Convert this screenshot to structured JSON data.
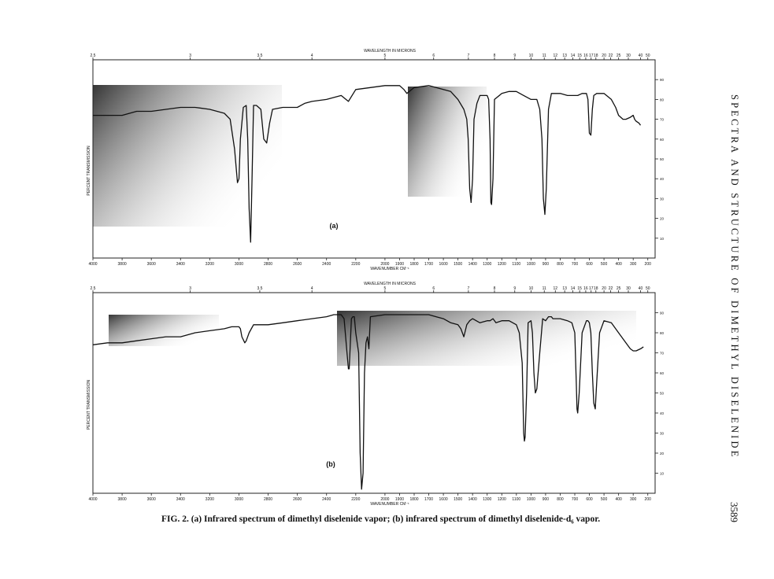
{
  "page": {
    "side_title": "SPECTRA AND STRUCTURE OF DIMETHYL DISELENIDE",
    "page_number": "3589",
    "caption": "FIG. 2. (a) Infrared spectrum of dimethyl diselenide vapor; (b) infrared spectrum of dimethyl diselenide-d₆ vapor."
  },
  "chart_data": [
    {
      "type": "line",
      "panel_label": "(a)",
      "xlabel": "WAVENUMBER CM⁻¹",
      "x2label": "WAVELENGTH IN MICRONS",
      "ylabel": "PERCENT TRANSMISSION",
      "xlim": [
        4000,
        150
      ],
      "ylim": [
        0,
        100
      ],
      "grid": false,
      "x_ticks": [
        "4000",
        "3800",
        "3600",
        "3400",
        "3200",
        "3000",
        "2800",
        "2600",
        "2400",
        "2200",
        "2000",
        "1900",
        "1800",
        "1700",
        "1600",
        "1500",
        "1400",
        "1300",
        "1200",
        "1100",
        "1000",
        "900",
        "800",
        "700",
        "600",
        "500",
        "400",
        "300",
        "200"
      ],
      "x2_ticks": [
        "2.5",
        "3",
        "3.5",
        "4",
        "5",
        "6",
        "7",
        "8",
        "9",
        "10",
        "11",
        "12",
        "13",
        "14",
        "15",
        "16",
        "17",
        "18",
        "20",
        "22",
        "25",
        "30",
        "40",
        "50"
      ],
      "y_ticks": [
        "10",
        "20",
        "30",
        "40",
        "50",
        "60",
        "70",
        "80",
        "90"
      ],
      "series": [
        {
          "x": [
            4000,
            3900,
            3800,
            3700,
            3600,
            3500,
            3400,
            3300,
            3200,
            3100,
            3060,
            3030,
            3010,
            3000,
            2990,
            2970,
            2950,
            2940,
            2930,
            2920,
            2910,
            2900,
            2880,
            2850,
            2830,
            2810,
            2790,
            2770,
            2700,
            2600,
            2550,
            2500,
            2400,
            2300,
            2250,
            2200,
            2100,
            2000,
            1900,
            1870,
            1850,
            1800,
            1700,
            1650,
            1600,
            1550,
            1500,
            1460,
            1440,
            1430,
            1420,
            1410,
            1400,
            1390,
            1370,
            1350,
            1300,
            1290,
            1280,
            1275,
            1270,
            1260,
            1250,
            1200,
            1150,
            1100,
            1050,
            1000,
            960,
            940,
            925,
            915,
            905,
            895,
            880,
            860,
            800,
            750,
            700,
            680,
            650,
            620,
            610,
            600,
            590,
            580,
            570,
            550,
            500,
            450,
            420,
            400,
            370,
            350,
            320,
            300,
            290,
            280,
            260,
            250
          ],
          "y": [
            72,
            72,
            72,
            74,
            74,
            75,
            76,
            76,
            75,
            73,
            70,
            55,
            38,
            40,
            60,
            76,
            77,
            60,
            25,
            8,
            40,
            77,
            77,
            75,
            60,
            58,
            68,
            75,
            76,
            76,
            78,
            79,
            80,
            82,
            79,
            85,
            86,
            87,
            87,
            85,
            83,
            86,
            87,
            86,
            85,
            84,
            80,
            75,
            70,
            60,
            35,
            28,
            40,
            70,
            78,
            82,
            82,
            80,
            60,
            28,
            27,
            40,
            80,
            83,
            84,
            84,
            82,
            80,
            80,
            75,
            60,
            30,
            22,
            35,
            75,
            83,
            83,
            82,
            82,
            82,
            83,
            83,
            80,
            63,
            62,
            75,
            82,
            83,
            83,
            80,
            76,
            72,
            70,
            70,
            71,
            72,
            70,
            69,
            68,
            67
          ]
        }
      ]
    },
    {
      "type": "line",
      "panel_label": "(b)",
      "xlabel": "WAVENUMBER CM⁻¹",
      "x2label": "WAVELENGTH IN MICRONS",
      "ylabel": "PERCENT TRANSMISSION",
      "xlim": [
        4000,
        150
      ],
      "ylim": [
        0,
        100
      ],
      "grid": false,
      "x_ticks": [
        "4000",
        "3800",
        "3600",
        "3400",
        "3200",
        "3000",
        "2800",
        "2600",
        "2400",
        "2200",
        "2000",
        "1900",
        "1800",
        "1700",
        "1600",
        "1500",
        "1400",
        "1300",
        "1200",
        "1100",
        "1000",
        "900",
        "800",
        "700",
        "600",
        "500",
        "400",
        "300",
        "200"
      ],
      "x2_ticks": [
        "2.5",
        "3",
        "3.5",
        "4",
        "5",
        "6",
        "7",
        "8",
        "9",
        "10",
        "11",
        "12",
        "13",
        "14",
        "15",
        "16",
        "17",
        "18",
        "20",
        "22",
        "25",
        "30",
        "40",
        "50"
      ],
      "y_ticks": [
        "10",
        "20",
        "30",
        "40",
        "50",
        "60",
        "70",
        "80",
        "90"
      ],
      "series": [
        {
          "x": [
            4000,
            3900,
            3800,
            3700,
            3600,
            3500,
            3400,
            3300,
            3200,
            3100,
            3050,
            3000,
            2990,
            2980,
            2960,
            2950,
            2930,
            2900,
            2800,
            2700,
            2600,
            2500,
            2400,
            2350,
            2300,
            2280,
            2260,
            2250,
            2245,
            2240,
            2230,
            2220,
            2210,
            2200,
            2180,
            2170,
            2160,
            2150,
            2140,
            2130,
            2120,
            2110,
            2100,
            2000,
            1900,
            1800,
            1700,
            1650,
            1600,
            1550,
            1500,
            1480,
            1460,
            1440,
            1420,
            1400,
            1350,
            1300,
            1280,
            1260,
            1240,
            1200,
            1150,
            1100,
            1080,
            1060,
            1050,
            1045,
            1040,
            1030,
            1020,
            1000,
            990,
            980,
            970,
            960,
            940,
            920,
            900,
            880,
            860,
            850,
            800,
            750,
            720,
            700,
            690,
            685,
            680,
            670,
            650,
            620,
            610,
            600,
            590,
            580,
            570,
            560,
            550,
            530,
            500,
            450,
            400,
            350,
            320,
            300,
            280,
            250,
            230
          ],
          "y": [
            74,
            75,
            75,
            76,
            77,
            78,
            78,
            80,
            81,
            82,
            83,
            83,
            82,
            78,
            75,
            76,
            80,
            84,
            84,
            85,
            86,
            87,
            88,
            89,
            89,
            87,
            70,
            62,
            62,
            70,
            87,
            88,
            88,
            80,
            70,
            20,
            2,
            10,
            60,
            75,
            78,
            72,
            88,
            89,
            89,
            89,
            89,
            88,
            87,
            85,
            84,
            82,
            78,
            84,
            86,
            87,
            85,
            86,
            86,
            87,
            85,
            86,
            86,
            84,
            80,
            65,
            30,
            26,
            28,
            50,
            85,
            86,
            80,
            60,
            50,
            52,
            70,
            87,
            86,
            88,
            88,
            87,
            87,
            86,
            85,
            80,
            55,
            42,
            40,
            50,
            80,
            86,
            86,
            85,
            80,
            60,
            45,
            42,
            55,
            80,
            86,
            85,
            80,
            75,
            72,
            71,
            71,
            72,
            73
          ]
        }
      ]
    }
  ]
}
